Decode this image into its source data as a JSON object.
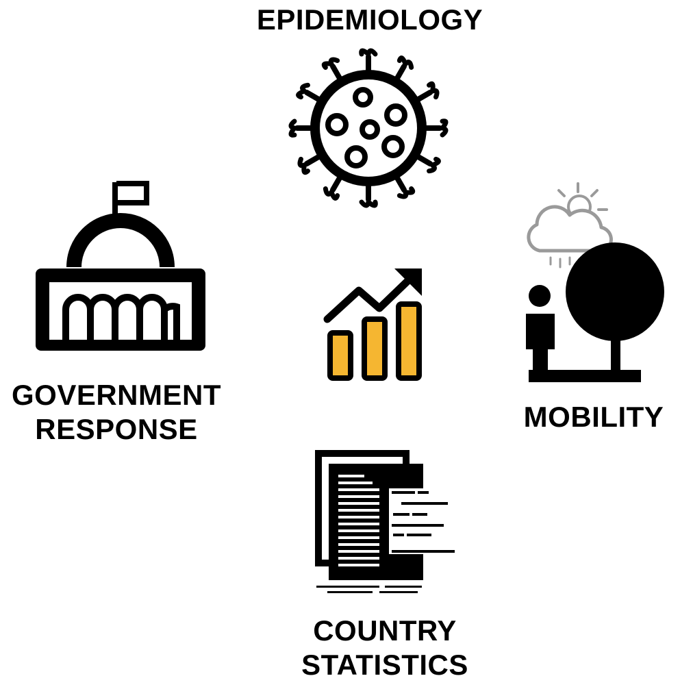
{
  "labels": {
    "epidemiology": "EPIDEMIOLOGY",
    "government_line1": "GOVERNMENT",
    "government_line2": "RESPONSE",
    "mobility": "MOBILITY",
    "country_line1": "COUNTRY",
    "country_line2": "STATISTICS"
  },
  "icons": {
    "top": "virus-icon",
    "left": "government-building-icon",
    "center": "growth-chart-icon",
    "right": "weather-tree-person-icon",
    "bottom": "documents-icon"
  },
  "colors": {
    "ink": "#000000",
    "accent": "#F5B631",
    "cloud": "#9a9a9a"
  }
}
